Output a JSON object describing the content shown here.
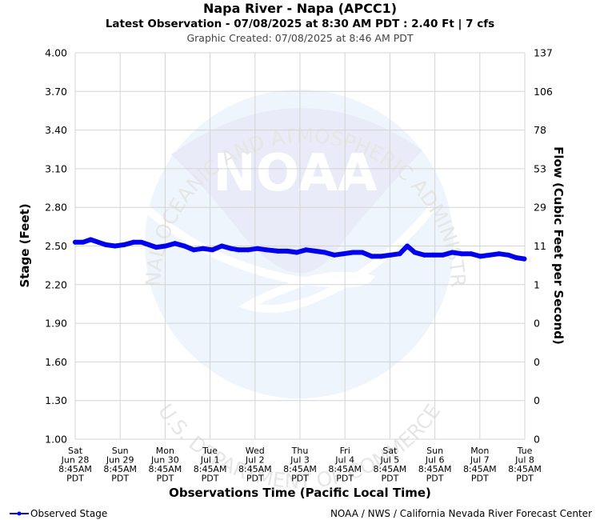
{
  "chart_data": {
    "type": "line",
    "title": "Napa River - Napa (APCC1)",
    "subtitle": "Latest Observation - 07/08/2025 at 8:30 AM PDT : 2.40 Ft | 7 cfs",
    "created": "Graphic Created: 07/08/2025 at 8:46 AM PDT",
    "ylabel": "Stage (Feet)",
    "ylabel_right": "Flow (Cubic Feet per Second)",
    "xlabel": "Observations Time (Pacific Local Time)",
    "ylim": [
      1.0,
      4.0
    ],
    "y_ticks": [
      "1.00",
      "1.30",
      "1.60",
      "1.90",
      "2.20",
      "2.50",
      "2.80",
      "3.10",
      "3.40",
      "3.70",
      "4.00"
    ],
    "y_ticks_right": [
      "0",
      "0",
      "0",
      "0",
      "1",
      "11",
      "29",
      "53",
      "78",
      "106",
      "137"
    ],
    "x_ticks": [
      {
        "day": "Sat",
        "date": "Jun 28",
        "time": "8:45AM",
        "tz": "PDT"
      },
      {
        "day": "Sun",
        "date": "Jun 29",
        "time": "8:45AM",
        "tz": "PDT"
      },
      {
        "day": "Mon",
        "date": "Jun 30",
        "time": "8:45AM",
        "tz": "PDT"
      },
      {
        "day": "Tue",
        "date": "Jul 1",
        "time": "8:45AM",
        "tz": "PDT"
      },
      {
        "day": "Wed",
        "date": "Jul 2",
        "time": "8:45AM",
        "tz": "PDT"
      },
      {
        "day": "Thu",
        "date": "Jul 3",
        "time": "8:45AM",
        "tz": "PDT"
      },
      {
        "day": "Fri",
        "date": "Jul 4",
        "time": "8:45AM",
        "tz": "PDT"
      },
      {
        "day": "Sat",
        "date": "Jul 5",
        "time": "8:45AM",
        "tz": "PDT"
      },
      {
        "day": "Sun",
        "date": "Jul 6",
        "time": "8:45AM",
        "tz": "PDT"
      },
      {
        "day": "Mon",
        "date": "Jul 7",
        "time": "8:45AM",
        "tz": "PDT"
      },
      {
        "day": "Tue",
        "date": "Jul 8",
        "time": "8:45AM",
        "tz": "PDT"
      }
    ],
    "grid": true,
    "legend_position": "bottom-left",
    "series": [
      {
        "name": "Observed Stage",
        "color": "#0000ee",
        "x": [
          "2025-06-28 08:45",
          "2025-06-28 13:00",
          "2025-06-28 17:00",
          "2025-06-28 21:00",
          "2025-06-29 01:00",
          "2025-06-29 06:00",
          "2025-06-29 11:00",
          "2025-06-29 16:00",
          "2025-06-29 20:00",
          "2025-06-30 00:00",
          "2025-06-30 04:00",
          "2025-06-30 09:00",
          "2025-06-30 14:00",
          "2025-06-30 19:00",
          "2025-07-01 00:00",
          "2025-07-01 05:00",
          "2025-07-01 10:00",
          "2025-07-01 15:00",
          "2025-07-01 20:00",
          "2025-07-02 00:00",
          "2025-07-02 05:00",
          "2025-07-02 10:00",
          "2025-07-02 15:00",
          "2025-07-02 21:00",
          "2025-07-03 02:00",
          "2025-07-03 07:00",
          "2025-07-03 12:00",
          "2025-07-03 17:00",
          "2025-07-03 22:00",
          "2025-07-04 03:00",
          "2025-07-04 08:00",
          "2025-07-04 13:00",
          "2025-07-04 18:00",
          "2025-07-04 23:00",
          "2025-07-05 04:00",
          "2025-07-05 09:00",
          "2025-07-05 14:00",
          "2025-07-05 18:00",
          "2025-07-05 22:00",
          "2025-07-06 03:00",
          "2025-07-06 08:00",
          "2025-07-06 13:00",
          "2025-07-06 18:00",
          "2025-07-06 23:00",
          "2025-07-07 04:00",
          "2025-07-07 09:00",
          "2025-07-07 14:00",
          "2025-07-07 19:00",
          "2025-07-08 00:00",
          "2025-07-08 04:00",
          "2025-07-08 08:30"
        ],
        "y": [
          2.53,
          2.53,
          2.55,
          2.53,
          2.51,
          2.5,
          2.51,
          2.53,
          2.53,
          2.51,
          2.49,
          2.5,
          2.52,
          2.5,
          2.47,
          2.48,
          2.47,
          2.5,
          2.48,
          2.47,
          2.47,
          2.48,
          2.47,
          2.46,
          2.46,
          2.45,
          2.47,
          2.46,
          2.45,
          2.43,
          2.44,
          2.45,
          2.45,
          2.42,
          2.42,
          2.43,
          2.44,
          2.5,
          2.45,
          2.43,
          2.43,
          2.43,
          2.45,
          2.44,
          2.44,
          2.42,
          2.43,
          2.44,
          2.43,
          2.41,
          2.4
        ]
      }
    ]
  },
  "watermark": {
    "logo_text": "NOAA",
    "top_arc": "NATIONAL OCEANIC AND ATMOSPHERIC ADMINISTRATION",
    "bottom_arc": "U.S. DEPARTMENT OF COMMERCE",
    "colors": {
      "top": "#e9ebf8",
      "bottom": "#eef5fd"
    }
  },
  "footer": {
    "legend_label": "Observed Stage",
    "credit": "NOAA / NWS / California Nevada River Forecast Center"
  }
}
